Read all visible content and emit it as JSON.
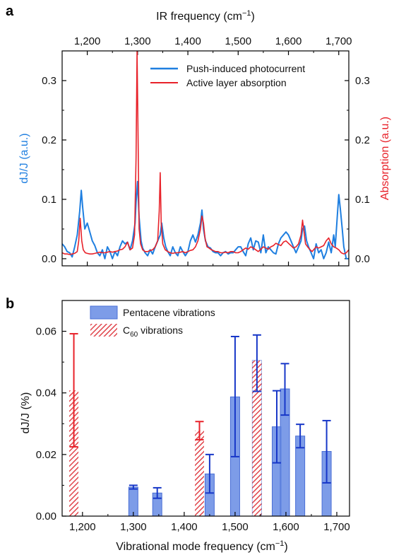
{
  "colors": {
    "blue": "#1f7fe0",
    "red": "#e8222a",
    "bar_fill": "#6f91e6",
    "bar_edge": "#4a6fd6",
    "bar_err": "#1737c8",
    "hatch": "#e0454b"
  },
  "chart_data": [
    {
      "type": "line",
      "panel": "a",
      "xlabel": "IR frequency (cm⁻¹)",
      "ylabel_left": "dJ/J (a.u.)",
      "ylabel_right": "Absorption (a.u.)",
      "xlim": [
        1150,
        1720
      ],
      "ylim": [
        -0.012,
        0.35
      ],
      "x_ticks": [
        1200,
        1300,
        1400,
        1500,
        1600,
        1700
      ],
      "x_tick_labels": [
        "1,200",
        "1,300",
        "1,400",
        "1,500",
        "1,600",
        "1,700"
      ],
      "y_ticks": [
        0.0,
        0.1,
        0.2,
        0.3
      ],
      "y_tick_labels": [
        "0.0",
        "0.1",
        "0.2",
        "0.3"
      ],
      "legend_position": "top-right",
      "series": [
        {
          "name": "Push-induced photocurrent",
          "color": "#1f7fe0",
          "x": [
            1150,
            1155,
            1160,
            1165,
            1170,
            1175,
            1180,
            1185,
            1188,
            1191,
            1195,
            1200,
            1205,
            1210,
            1215,
            1220,
            1225,
            1230,
            1235,
            1240,
            1245,
            1250,
            1255,
            1260,
            1265,
            1270,
            1275,
            1280,
            1285,
            1290,
            1295,
            1297,
            1300,
            1303,
            1307,
            1310,
            1315,
            1320,
            1325,
            1330,
            1335,
            1340,
            1345,
            1348,
            1352,
            1356,
            1360,
            1365,
            1370,
            1375,
            1380,
            1385,
            1390,
            1395,
            1400,
            1405,
            1410,
            1415,
            1420,
            1425,
            1428,
            1431,
            1435,
            1440,
            1445,
            1450,
            1455,
            1460,
            1465,
            1470,
            1475,
            1480,
            1485,
            1490,
            1495,
            1500,
            1505,
            1510,
            1515,
            1520,
            1525,
            1530,
            1535,
            1540,
            1545,
            1550,
            1555,
            1560,
            1565,
            1570,
            1575,
            1580,
            1585,
            1590,
            1595,
            1600,
            1605,
            1610,
            1615,
            1620,
            1625,
            1628,
            1632,
            1636,
            1640,
            1645,
            1650,
            1655,
            1660,
            1665,
            1670,
            1675,
            1680,
            1685,
            1690,
            1693,
            1697,
            1700,
            1703,
            1707,
            1710,
            1715,
            1720
          ],
          "y": [
            0.025,
            0.02,
            0.012,
            0.01,
            0.003,
            0.02,
            0.04,
            0.08,
            0.115,
            0.085,
            0.05,
            0.06,
            0.045,
            0.03,
            0.022,
            0.01,
            0.005,
            0.015,
            0.0,
            0.02,
            0.012,
            0.0,
            0.012,
            0.005,
            0.02,
            0.03,
            0.025,
            0.028,
            0.015,
            0.03,
            0.06,
            0.095,
            0.13,
            0.07,
            0.03,
            0.018,
            0.01,
            0.005,
            0.015,
            0.008,
            0.02,
            0.03,
            0.04,
            0.06,
            0.035,
            0.02,
            0.012,
            0.005,
            0.02,
            0.01,
            0.005,
            0.02,
            0.012,
            0.005,
            0.012,
            0.03,
            0.04,
            0.028,
            0.04,
            0.06,
            0.082,
            0.05,
            0.03,
            0.02,
            0.018,
            0.012,
            0.01,
            0.01,
            0.005,
            0.01,
            0.012,
            0.008,
            0.01,
            0.01,
            0.015,
            0.02,
            0.02,
            0.012,
            0.005,
            0.025,
            0.035,
            0.015,
            0.03,
            0.028,
            0.01,
            0.04,
            0.01,
            0.02,
            0.015,
            0.01,
            0.008,
            0.025,
            0.035,
            0.04,
            0.045,
            0.04,
            0.03,
            0.02,
            0.01,
            0.02,
            0.03,
            0.05,
            0.055,
            0.03,
            0.02,
            0.01,
            0.0,
            0.025,
            0.01,
            0.015,
            0.0,
            0.01,
            0.028,
            0.01,
            0.04,
            0.02,
            0.07,
            0.108,
            0.085,
            0.05,
            0.02,
            0.0,
            0.0
          ]
        },
        {
          "name": "Active layer absorption",
          "color": "#e8222a",
          "x": [
            1150,
            1155,
            1160,
            1165,
            1170,
            1175,
            1180,
            1183,
            1186,
            1189,
            1192,
            1196,
            1200,
            1205,
            1210,
            1215,
            1220,
            1225,
            1230,
            1235,
            1240,
            1245,
            1250,
            1255,
            1260,
            1265,
            1270,
            1275,
            1280,
            1285,
            1290,
            1294,
            1297,
            1299,
            1301,
            1303,
            1306,
            1310,
            1315,
            1320,
            1325,
            1330,
            1335,
            1340,
            1343,
            1345,
            1347,
            1350,
            1355,
            1360,
            1365,
            1370,
            1375,
            1380,
            1385,
            1390,
            1395,
            1400,
            1405,
            1410,
            1415,
            1420,
            1425,
            1428,
            1431,
            1434,
            1438,
            1442,
            1447,
            1450,
            1455,
            1460,
            1465,
            1470,
            1475,
            1480,
            1485,
            1490,
            1495,
            1500,
            1505,
            1510,
            1515,
            1520,
            1525,
            1530,
            1535,
            1540,
            1545,
            1550,
            1555,
            1560,
            1565,
            1570,
            1575,
            1580,
            1585,
            1590,
            1595,
            1600,
            1605,
            1610,
            1615,
            1620,
            1625,
            1628,
            1631,
            1634,
            1638,
            1642,
            1647,
            1650,
            1655,
            1660,
            1665,
            1670,
            1675,
            1680,
            1685,
            1690,
            1695,
            1700,
            1705,
            1710,
            1715,
            1720
          ],
          "y": [
            0.01,
            0.008,
            0.008,
            0.007,
            0.008,
            0.009,
            0.012,
            0.03,
            0.068,
            0.03,
            0.015,
            0.01,
            0.009,
            0.008,
            0.008,
            0.009,
            0.01,
            0.011,
            0.01,
            0.01,
            0.011,
            0.012,
            0.011,
            0.012,
            0.013,
            0.015,
            0.016,
            0.02,
            0.028,
            0.015,
            0.018,
            0.04,
            0.17,
            0.35,
            0.2,
            0.05,
            0.025,
            0.015,
            0.012,
            0.012,
            0.014,
            0.015,
            0.02,
            0.03,
            0.08,
            0.145,
            0.06,
            0.025,
            0.015,
            0.012,
            0.01,
            0.009,
            0.01,
            0.01,
            0.011,
            0.012,
            0.01,
            0.012,
            0.014,
            0.015,
            0.02,
            0.03,
            0.05,
            0.072,
            0.06,
            0.035,
            0.02,
            0.018,
            0.015,
            0.014,
            0.012,
            0.012,
            0.01,
            0.01,
            0.011,
            0.01,
            0.012,
            0.012,
            0.01,
            0.01,
            0.012,
            0.015,
            0.018,
            0.016,
            0.02,
            0.018,
            0.015,
            0.012,
            0.016,
            0.02,
            0.018,
            0.016,
            0.02,
            0.022,
            0.026,
            0.024,
            0.022,
            0.028,
            0.03,
            0.026,
            0.022,
            0.018,
            0.02,
            0.025,
            0.04,
            0.065,
            0.045,
            0.025,
            0.02,
            0.016,
            0.012,
            0.015,
            0.02,
            0.018,
            0.02,
            0.022,
            0.03,
            0.035,
            0.025,
            0.02,
            0.018,
            0.015,
            0.01,
            0.008,
            0.01,
            0.015
          ]
        }
      ]
    },
    {
      "type": "bar",
      "panel": "b",
      "xlabel": "Vibrational mode frequency (cm⁻¹)",
      "ylabel": "dJ/J (%)",
      "xlim": [
        1160,
        1725
      ],
      "ylim": [
        0,
        0.07
      ],
      "x_ticks": [
        1200,
        1300,
        1400,
        1500,
        1600,
        1700
      ],
      "x_tick_labels": [
        "1,200",
        "1,300",
        "1,400",
        "1,500",
        "1,600",
        "1,700"
      ],
      "y_ticks": [
        0.0,
        0.02,
        0.04,
        0.06
      ],
      "y_tick_labels": [
        "0.00",
        "0.02",
        "0.04",
        "0.06"
      ],
      "legend_position": "top-left",
      "series": [
        {
          "name": "Pentacene vibrations",
          "color": "#6f91e6",
          "bars": [
            {
              "x": 1300,
              "value": 0.0094,
              "err_low": 0.0088,
              "err_high": 0.01
            },
            {
              "x": 1347,
              "value": 0.0075,
              "err_low": 0.0058,
              "err_high": 0.0092
            },
            {
              "x": 1450,
              "value": 0.0137,
              "err_low": 0.0075,
              "err_high": 0.02
            },
            {
              "x": 1500,
              "value": 0.0387,
              "err_low": 0.0193,
              "err_high": 0.0583
            },
            {
              "x": 1543,
              "value": 0.0505,
              "err_low": 0.0405,
              "err_high": 0.0588
            },
            {
              "x": 1582,
              "value": 0.029,
              "err_low": 0.0173,
              "err_high": 0.0407
            },
            {
              "x": 1598,
              "value": 0.0413,
              "err_low": 0.0328,
              "err_high": 0.0495
            },
            {
              "x": 1628,
              "value": 0.026,
              "err_low": 0.0222,
              "err_high": 0.0298
            },
            {
              "x": 1680,
              "value": 0.021,
              "err_low": 0.0108,
              "err_high": 0.031
            }
          ]
        },
        {
          "name": "C₆₀ vibrations",
          "color": "#e8222a",
          "bars": [
            {
              "x": 1183,
              "value": 0.0408,
              "err_low": 0.0225,
              "err_high": 0.0592
            },
            {
              "x": 1430,
              "value": 0.0278,
              "err_low": 0.0248,
              "err_high": 0.0307
            },
            {
              "x": 1543,
              "value": 0.0505,
              "err_low": 0.0505,
              "err_high": 0.0505
            }
          ]
        }
      ]
    }
  ],
  "panel_a": {
    "letter": "a",
    "top_axis_title": "IR frequency (cm",
    "top_axis_title_sup": "−1",
    "top_axis_title_end": ")",
    "left_axis_title": "dJ/J (a.u.)",
    "right_axis_title": "Absorption (a.u.)",
    "legend": [
      "Push-induced photocurrent",
      "Active layer absorption"
    ]
  },
  "panel_b": {
    "letter": "b",
    "x_axis_title": "Vibrational mode frequency (cm",
    "x_axis_title_sup": "−1",
    "x_axis_title_end": ")",
    "y_axis_title": "dJ/J (%)",
    "legend_pentacene": "Pentacene vibrations",
    "legend_c60_main": "C",
    "legend_c60_sub": "60",
    "legend_c60_rest": " vibrations"
  }
}
